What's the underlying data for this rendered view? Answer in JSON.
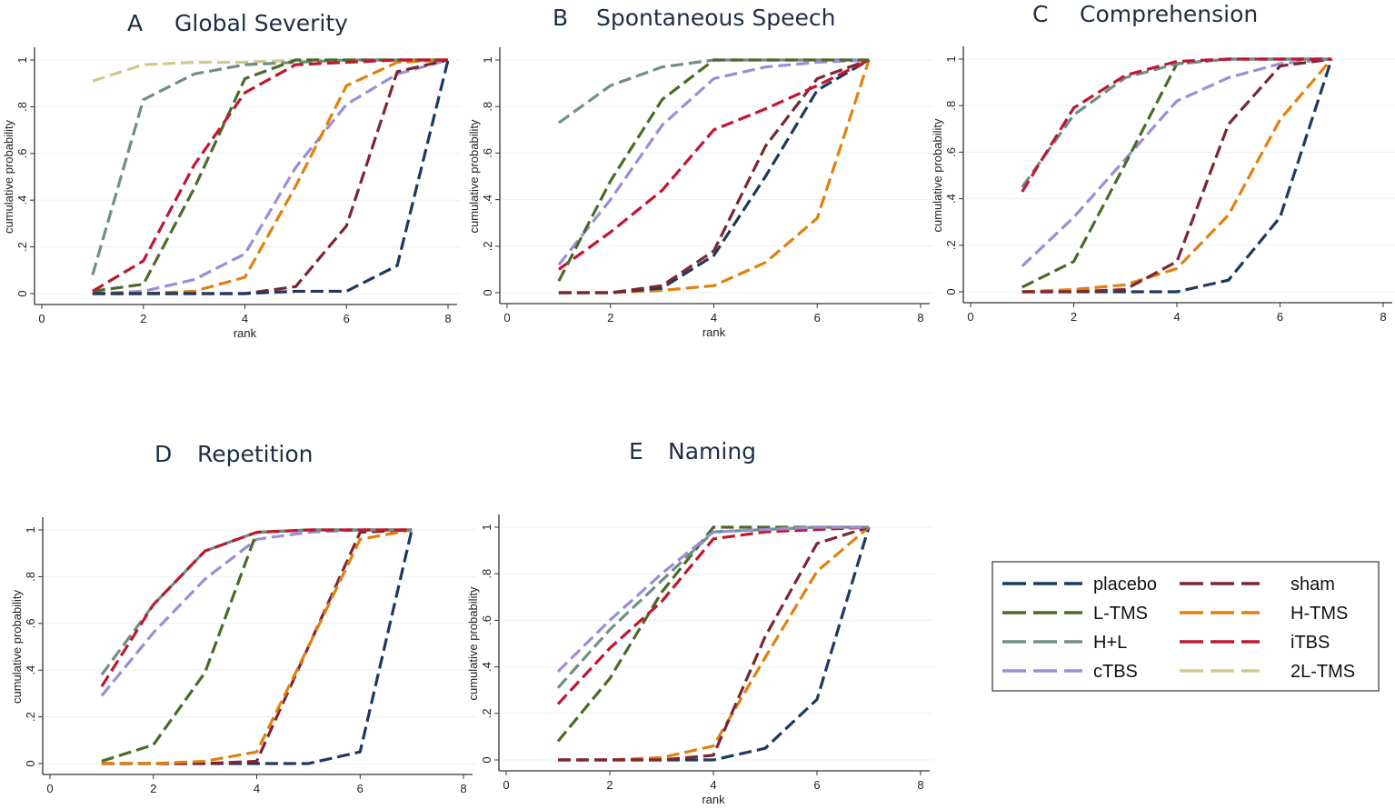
{
  "legend": {
    "items": [
      {
        "name": "placebo",
        "color": "#1b3a5e"
      },
      {
        "name": "sham",
        "color": "#7b2634"
      },
      {
        "name": "L-TMS",
        "color": "#4b6b24"
      },
      {
        "name": "H-TMS",
        "color": "#e2800f"
      },
      {
        "name": "H+L",
        "color": "#6e8f84"
      },
      {
        "name": "iTBS",
        "color": "#c0162f"
      },
      {
        "name": "cTBS",
        "color": "#9a8ed8"
      },
      {
        "name": "2L-TMS",
        "color": "#d3c88a"
      }
    ]
  },
  "chart_data": [
    {
      "type": "line",
      "letter": "A",
      "title": "Global Severity",
      "xlabel": "rank",
      "ylabel": "cumulative probability",
      "xlim": [
        0,
        8
      ],
      "ylim": [
        0,
        1
      ],
      "xticks": [
        "0",
        "2",
        "4",
        "6",
        "8"
      ],
      "yticks": [
        "0",
        ".2",
        ".4",
        ".6",
        ".8",
        "1"
      ],
      "x": [
        1,
        2,
        3,
        4,
        5,
        6,
        7,
        8
      ],
      "series": [
        {
          "name": "2L-TMS",
          "values": [
            0.91,
            0.98,
            0.99,
            0.99,
            1,
            1,
            1,
            1
          ]
        },
        {
          "name": "H+L",
          "values": [
            0.08,
            0.83,
            0.94,
            0.98,
            0.99,
            1,
            1,
            1
          ]
        },
        {
          "name": "cTBS",
          "values": [
            0,
            0.01,
            0.06,
            0.17,
            0.54,
            0.81,
            0.94,
            1
          ]
        },
        {
          "name": "H-TMS",
          "values": [
            0,
            0,
            0.01,
            0.07,
            0.46,
            0.89,
            0.99,
            1
          ]
        },
        {
          "name": "sham",
          "values": [
            0,
            0,
            0,
            0,
            0.03,
            0.29,
            0.95,
            1
          ]
        },
        {
          "name": "placebo",
          "values": [
            0,
            0,
            0,
            0,
            0.01,
            0.01,
            0.12,
            1
          ]
        },
        {
          "name": "L-TMS",
          "values": [
            0.01,
            0.04,
            0.45,
            0.92,
            1,
            1,
            1,
            1
          ]
        },
        {
          "name": "iTBS",
          "values": [
            0.01,
            0.14,
            0.55,
            0.86,
            0.98,
            0.99,
            1,
            1
          ]
        }
      ]
    },
    {
      "type": "line",
      "letter": "B",
      "title": "Spontaneous Speech",
      "xlabel": "rank",
      "ylabel": "cumulative probability",
      "xlim": [
        0,
        8
      ],
      "ylim": [
        0,
        1
      ],
      "xticks": [
        "0",
        "2",
        "4",
        "6",
        "8"
      ],
      "yticks": [
        "0",
        ".2",
        ".4",
        ".6",
        ".8",
        "1"
      ],
      "x": [
        1,
        2,
        3,
        4,
        5,
        6,
        7
      ],
      "series": [
        {
          "name": "H+L",
          "values": [
            0.73,
            0.89,
            0.97,
            1,
            1,
            1,
            1
          ]
        },
        {
          "name": "cTBS",
          "values": [
            0.12,
            0.4,
            0.72,
            0.92,
            0.97,
            0.99,
            1
          ]
        },
        {
          "name": "H-TMS",
          "values": [
            0,
            0,
            0.01,
            0.03,
            0.13,
            0.32,
            1
          ]
        },
        {
          "name": "placebo",
          "values": [
            0,
            0,
            0.02,
            0.16,
            0.5,
            0.87,
            1
          ]
        },
        {
          "name": "sham",
          "values": [
            0,
            0,
            0.03,
            0.18,
            0.63,
            0.92,
            1
          ]
        },
        {
          "name": "iTBS",
          "values": [
            0.1,
            0.26,
            0.44,
            0.7,
            0.79,
            0.89,
            1
          ]
        },
        {
          "name": "L-TMS",
          "values": [
            0.05,
            0.48,
            0.83,
            1,
            1,
            1,
            1
          ]
        }
      ]
    },
    {
      "type": "line",
      "letter": "C",
      "title": "Comprehension",
      "xlabel": "",
      "ylabel": "cumulative probability",
      "xlim": [
        0,
        8
      ],
      "ylim": [
        0,
        1
      ],
      "xticks": [
        "0",
        "2",
        "4",
        "6",
        "8"
      ],
      "yticks": [
        "0",
        ".2",
        ".4",
        ".6",
        ".8",
        "1"
      ],
      "x": [
        1,
        2,
        3,
        4,
        5,
        6,
        7
      ],
      "series": [
        {
          "name": "cTBS",
          "values": [
            0.11,
            0.32,
            0.57,
            0.82,
            0.92,
            0.98,
            1
          ]
        },
        {
          "name": "placebo",
          "values": [
            0,
            0,
            0,
            0,
            0.05,
            0.32,
            1
          ]
        },
        {
          "name": "H-TMS",
          "values": [
            0,
            0.01,
            0.03,
            0.1,
            0.33,
            0.74,
            1
          ]
        },
        {
          "name": "sham",
          "values": [
            0,
            0,
            0.01,
            0.13,
            0.72,
            0.97,
            1
          ]
        },
        {
          "name": "L-TMS",
          "values": [
            0.02,
            0.13,
            0.55,
            0.98,
            1,
            1,
            1
          ]
        },
        {
          "name": "H+L",
          "values": [
            0.45,
            0.76,
            0.92,
            0.98,
            1,
            1,
            1
          ]
        },
        {
          "name": "iTBS",
          "values": [
            0.43,
            0.79,
            0.93,
            0.99,
            1,
            1,
            1
          ]
        }
      ]
    },
    {
      "type": "line",
      "letter": "D",
      "title": "Repetition",
      "xlabel": "",
      "ylabel": "cumulative probability",
      "xlim": [
        0,
        8
      ],
      "ylim": [
        0,
        1
      ],
      "xticks": [
        "0",
        "2",
        "4",
        "6",
        "8"
      ],
      "yticks": [
        "0",
        ".2",
        ".4",
        ".6",
        ".8",
        "1"
      ],
      "x": [
        1,
        2,
        3,
        4,
        5,
        6,
        7
      ],
      "series": [
        {
          "name": "placebo",
          "values": [
            0,
            0,
            0,
            0,
            0,
            0.05,
            1
          ]
        },
        {
          "name": "cTBS",
          "values": [
            0.29,
            0.56,
            0.79,
            0.96,
            0.99,
            1,
            1
          ]
        },
        {
          "name": "L-TMS",
          "values": [
            0.01,
            0.08,
            0.39,
            0.99,
            1,
            1,
            1
          ]
        },
        {
          "name": "sham",
          "values": [
            0,
            0,
            0,
            0.01,
            0.5,
            0.99,
            1
          ]
        },
        {
          "name": "H-TMS",
          "values": [
            0,
            0,
            0.01,
            0.05,
            0.5,
            0.96,
            1
          ]
        },
        {
          "name": "H+L",
          "values": [
            0.38,
            0.68,
            0.91,
            0.99,
            1,
            1,
            1
          ]
        },
        {
          "name": "iTBS",
          "values": [
            0.33,
            0.68,
            0.91,
            0.99,
            1,
            1,
            1
          ]
        }
      ]
    },
    {
      "type": "line",
      "letter": "E",
      "title": "Naming",
      "xlabel": "rank",
      "ylabel": "cumulative probability",
      "xlim": [
        0,
        8
      ],
      "ylim": [
        0,
        1
      ],
      "xticks": [
        "0",
        "2",
        "4",
        "6",
        "8"
      ],
      "yticks": [
        "0",
        ".2",
        ".4",
        ".6",
        ".8",
        "1"
      ],
      "x": [
        1,
        2,
        3,
        4,
        5,
        6,
        7
      ],
      "series": [
        {
          "name": "placebo",
          "values": [
            0,
            0,
            0,
            0,
            0.05,
            0.26,
            1
          ]
        },
        {
          "name": "H-TMS",
          "values": [
            0,
            0,
            0.01,
            0.06,
            0.44,
            0.81,
            1
          ]
        },
        {
          "name": "sham",
          "values": [
            0,
            0,
            0,
            0.02,
            0.53,
            0.93,
            1
          ]
        },
        {
          "name": "L-TMS",
          "values": [
            0.08,
            0.35,
            0.72,
            1,
            1,
            1,
            1
          ]
        },
        {
          "name": "iTBS",
          "values": [
            0.24,
            0.48,
            0.68,
            0.95,
            0.98,
            0.99,
            1
          ]
        },
        {
          "name": "H+L",
          "values": [
            0.31,
            0.56,
            0.77,
            0.98,
            0.99,
            1,
            1
          ]
        },
        {
          "name": "cTBS",
          "values": [
            0.38,
            0.6,
            0.8,
            0.98,
            0.99,
            1,
            1
          ]
        }
      ]
    }
  ]
}
